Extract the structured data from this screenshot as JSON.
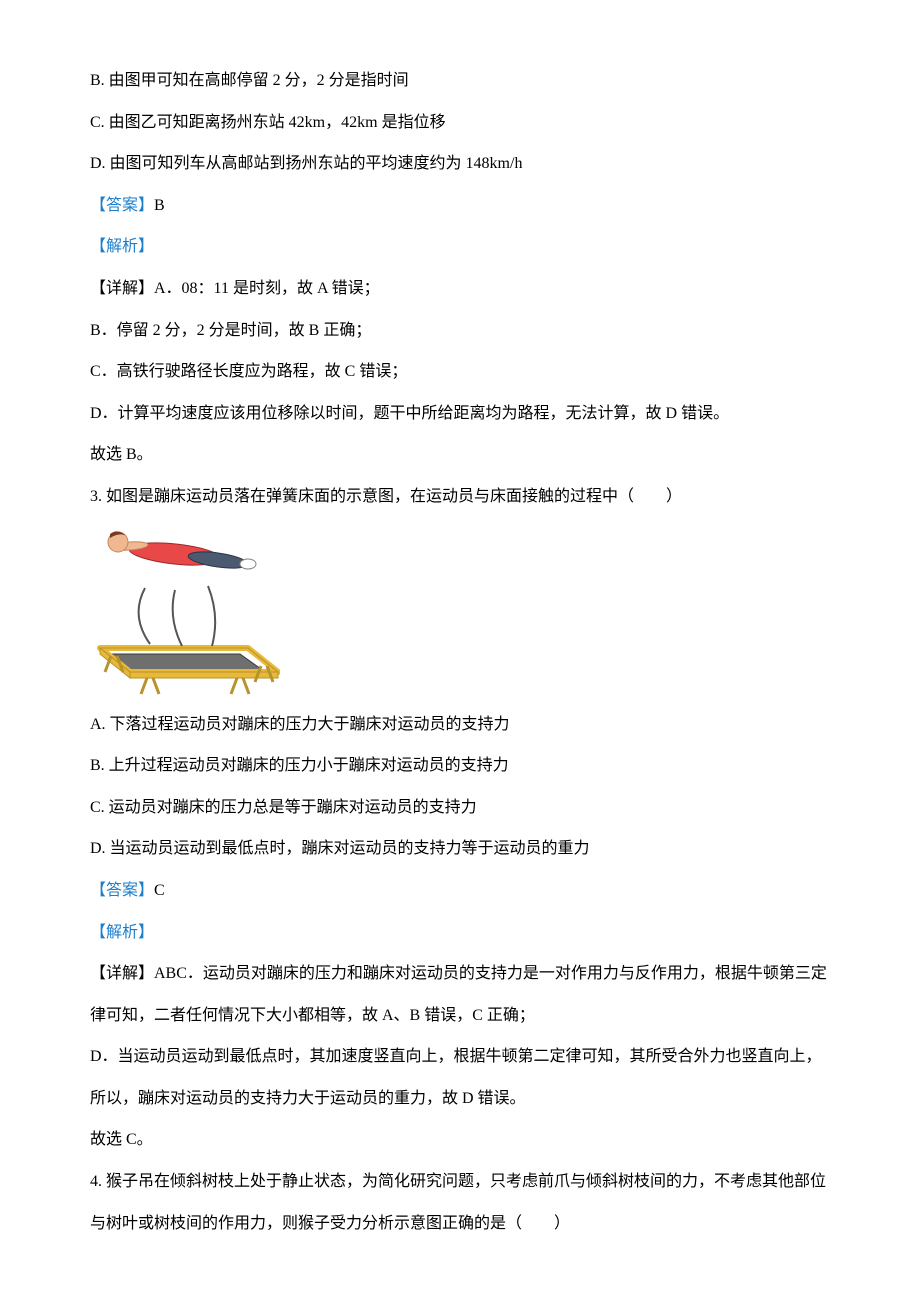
{
  "q2": {
    "opt_b": "B.  由图甲可知在高邮停留 2 分，2 分是指时间",
    "opt_c": "C.  由图乙可知距离扬州东站 42km，42km 是指位移",
    "opt_d": "D.  由图可知列车从高邮站到扬州东站的平均速度约为 148km/h",
    "answer_label": "【答案】",
    "answer_value": "B",
    "analysis_label": "【解析】",
    "detail_a": "【详解】A．08：11 是时刻，故 A 错误；",
    "detail_b": "B．停留 2 分，2 分是时间，故 B 正确；",
    "detail_c": "C．高铁行驶路径长度应为路程，故 C 错误；",
    "detail_d": "D．计算平均速度应该用位移除以时间，题干中所给距离均为路程，无法计算，故 D 错误。",
    "conclusion": "故选 B。"
  },
  "q3": {
    "stem": "3.  如图是蹦床运动员落在弹簧床面的示意图，在运动员与床面接触的过程中（　　）",
    "opt_a": "A.  下落过程运动员对蹦床的压力大于蹦床对运动员的支持力",
    "opt_b": "B.  上升过程运动员对蹦床的压力小于蹦床对运动员的支持力",
    "opt_c": "C.  运动员对蹦床的压力总是等于蹦床对运动员的支持力",
    "opt_d": "D.  当运动员运动到最低点时，蹦床对运动员的支持力等于运动员的重力",
    "answer_label": "【答案】",
    "answer_value": "C",
    "analysis_label": "【解析】",
    "detail_abc": "【详解】ABC．运动员对蹦床的压力和蹦床对运动员的支持力是一对作用力与反作用力，根据牛顿第三定律可知，二者任何情况下大小都相等，故 A、B 错误，C 正确；",
    "detail_d": "D．当运动员运动到最低点时，其加速度竖直向上，根据牛顿第二定律可知，其所受合外力也竖直向上，所以，蹦床对运动员的支持力大于运动员的重力，故 D 错误。",
    "conclusion": "故选 C。"
  },
  "q4": {
    "stem": "4.  猴子吊在倾斜树枝上处于静止状态，为简化研究问题，只考虑前爪与倾斜树枝间的力，不考虑其他部位与树叶或树枝间的作用力，则猴子受力分析示意图正确的是（　　）"
  },
  "figure": {
    "width": 190,
    "height": 170,
    "colors": {
      "frame_yellow": "#e8b838",
      "frame_dark": "#b8922a",
      "net_gray": "#6f6f6f",
      "net_dark": "#3a3a3a",
      "spring_line": "#555555",
      "person_skin": "#f0b890",
      "person_shirt": "#e84848",
      "person_pants": "#4a5a70",
      "person_hair": "#7a3a20",
      "shoe": "#ffffff"
    }
  }
}
